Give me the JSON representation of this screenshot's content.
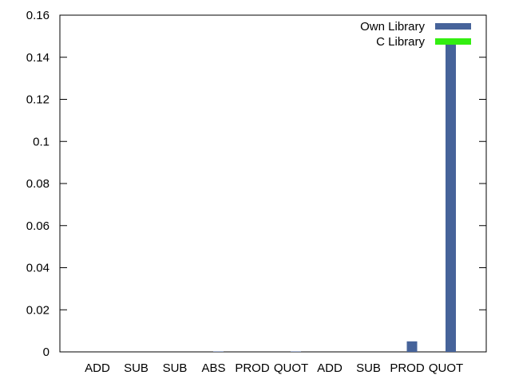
{
  "chart_data": {
    "type": "bar",
    "categories": [
      "ADD",
      "SUB",
      "SUB",
      "ABS",
      "PROD",
      "QUOT",
      "ADD",
      "SUB",
      "PROD",
      "QUOT"
    ],
    "series": [
      {
        "name": "Own Library",
        "color": "#46639a",
        "values": [
          0,
          0,
          0,
          0.0002,
          0,
          0.0002,
          0,
          0,
          0.005,
          0.146
        ]
      },
      {
        "name": "C Library",
        "color": "#33ee11",
        "values": [
          0,
          0,
          0,
          0,
          0,
          0,
          0,
          0,
          0,
          0
        ]
      }
    ],
    "title": "",
    "xlabel": "",
    "ylabel": "",
    "ylim": [
      0,
      0.16
    ],
    "yticks": [
      "0",
      "0.02",
      "0.04",
      "0.06",
      "0.08",
      "0.1",
      "0.12",
      "0.14",
      "0.16"
    ],
    "legend": "top-right",
    "grid": false
  }
}
